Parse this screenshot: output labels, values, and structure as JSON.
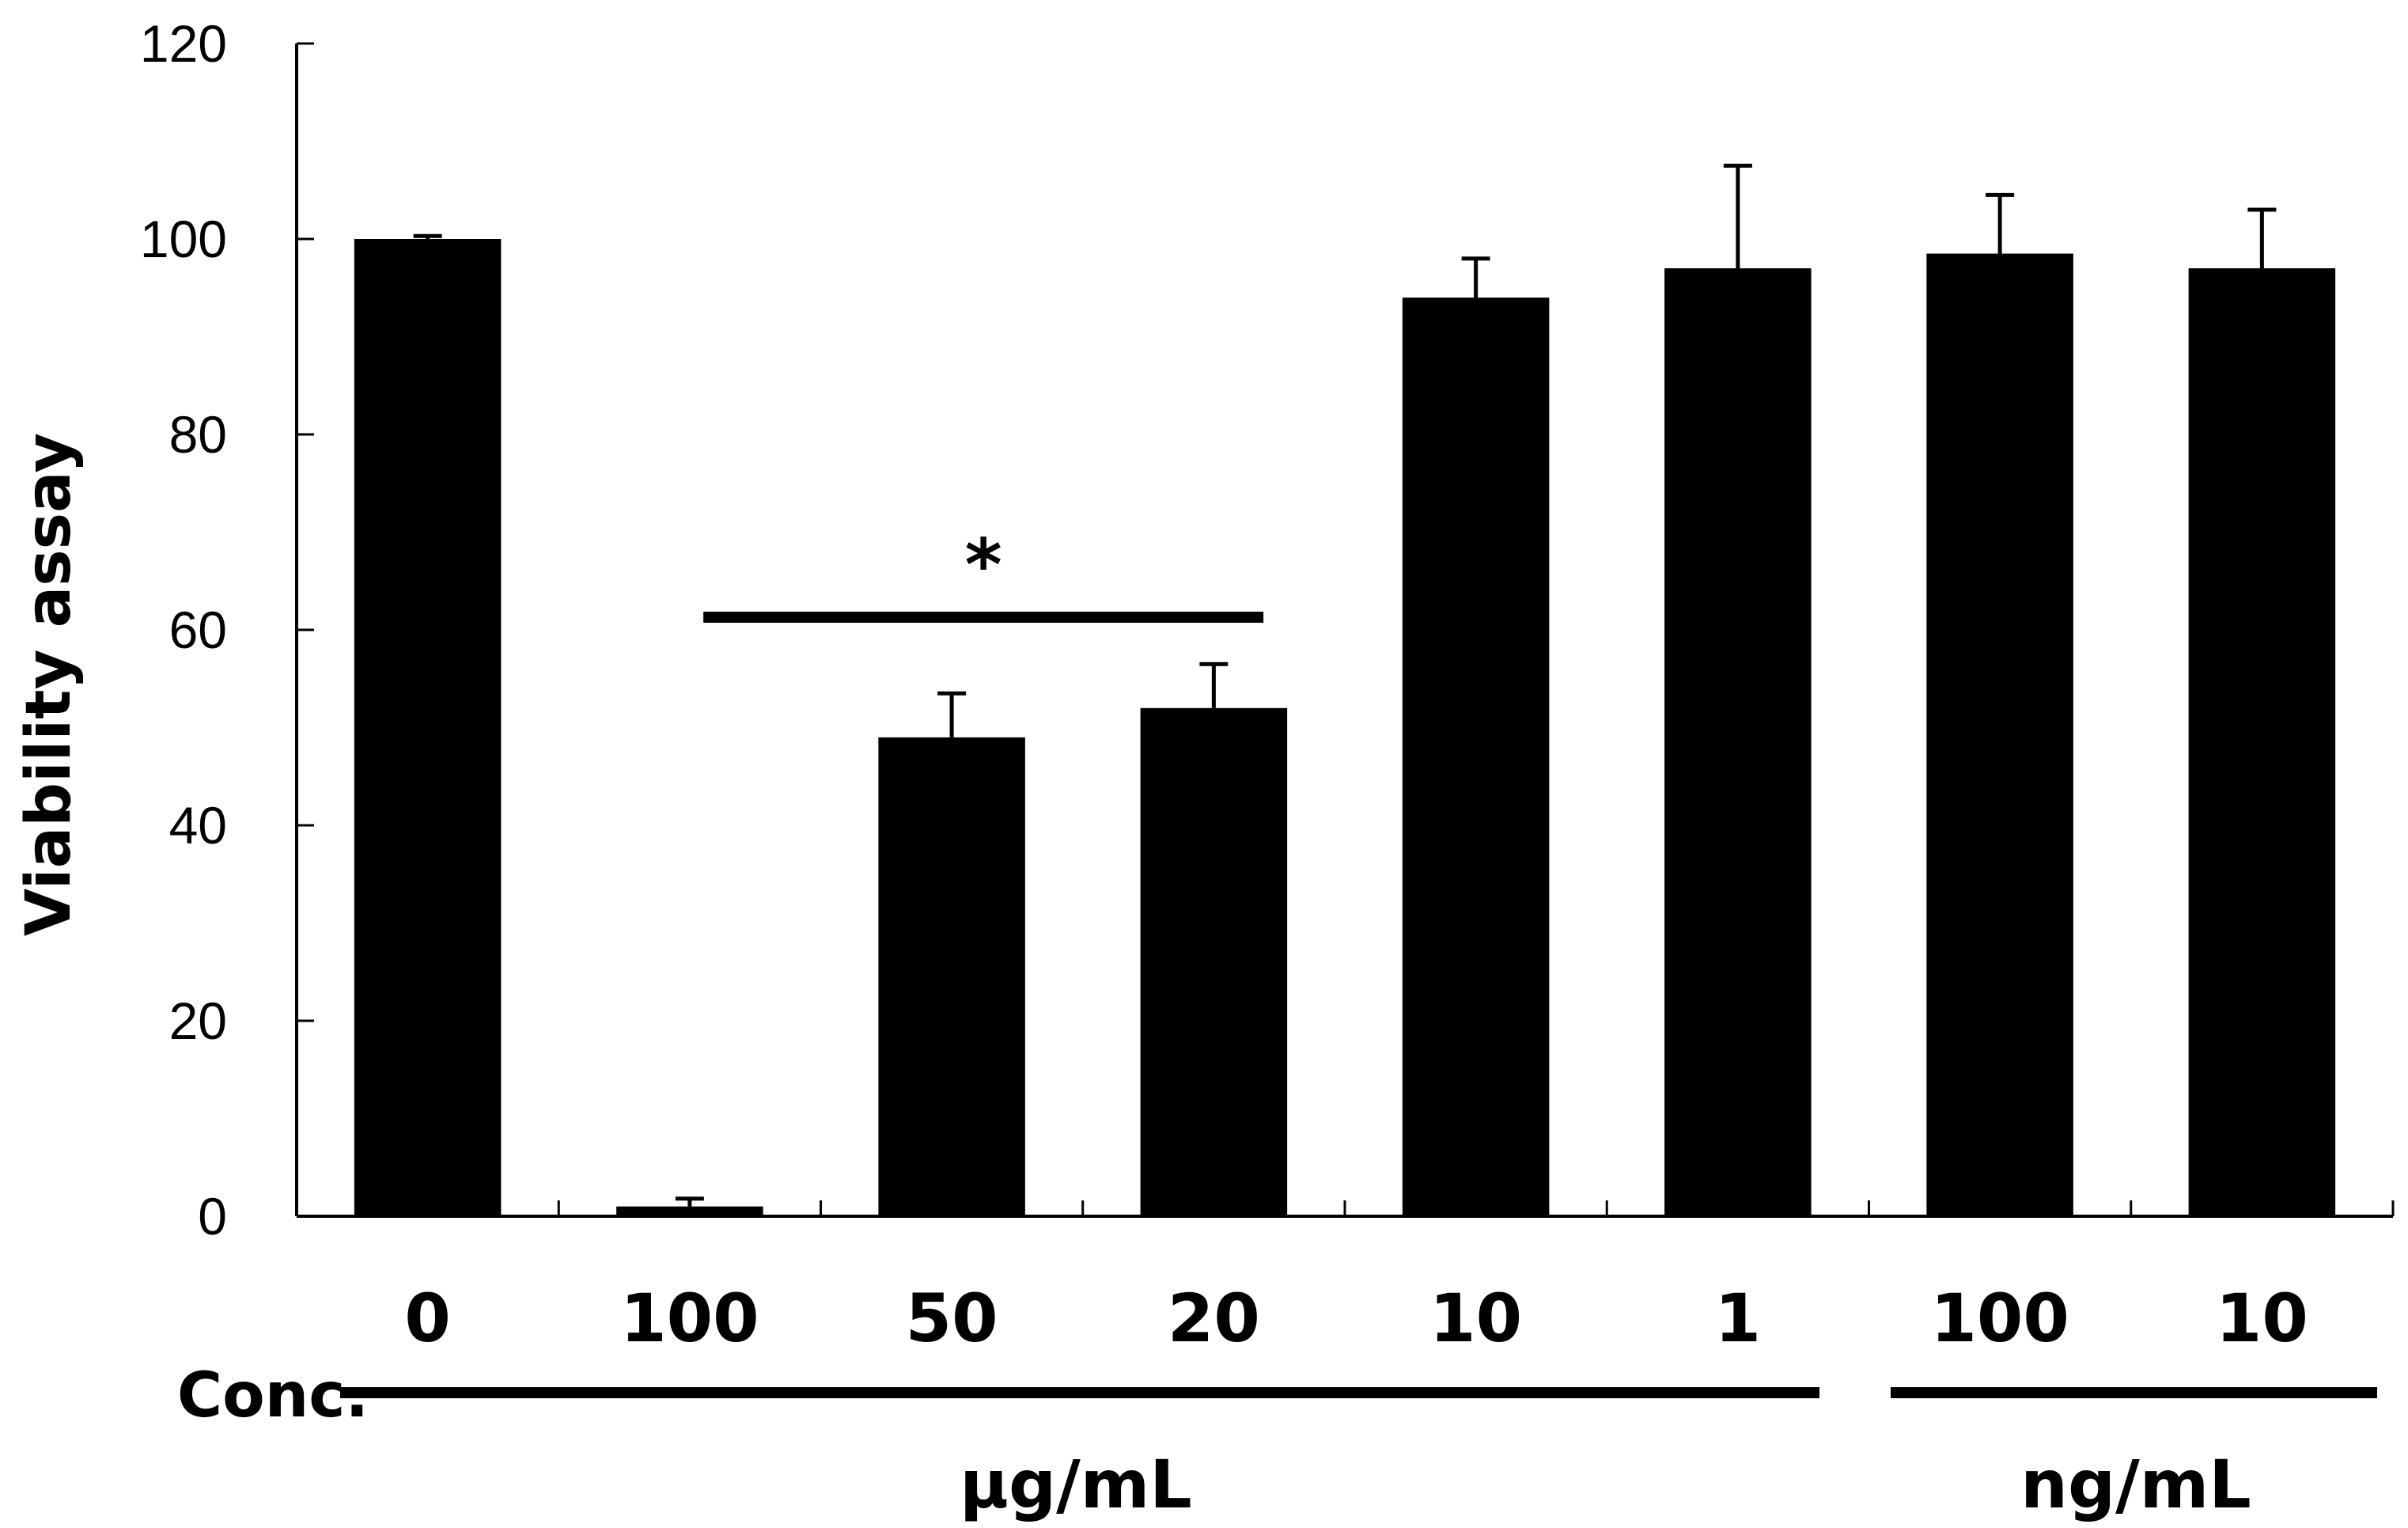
{
  "chart_data": {
    "type": "bar",
    "title": "",
    "ylabel": "Viability assay",
    "xlabel": "Conc.",
    "ylim": [
      0,
      120
    ],
    "yticks": [
      0,
      20,
      40,
      60,
      80,
      100,
      120
    ],
    "categories": [
      "0",
      "100",
      "50",
      "20",
      "10",
      "1",
      "100",
      "10"
    ],
    "values": [
      100,
      1,
      49,
      52,
      94,
      97,
      98.5,
      97
    ],
    "errors": [
      0.3,
      0.8,
      4.5,
      4.5,
      4,
      10.5,
      6,
      6
    ],
    "colors": {
      "bar": "#000000",
      "background": "#ffffff"
    },
    "unit_groups": [
      {
        "label": "µg/mL",
        "categories": [
          "0",
          "100",
          "50",
          "20",
          "10",
          "1"
        ]
      },
      {
        "label": "ng/mL",
        "categories": [
          "100",
          "10"
        ]
      }
    ],
    "significance": {
      "label": "*",
      "categories": [
        "100",
        "20"
      ]
    }
  }
}
